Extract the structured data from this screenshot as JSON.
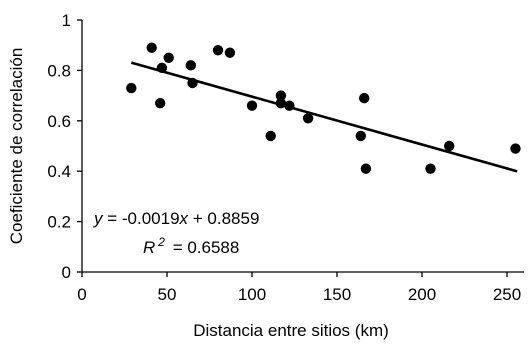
{
  "chart_data": {
    "type": "scatter",
    "title": "",
    "xlabel": "Distancia entre sitios (km)",
    "ylabel": "Coeficiente de correlación",
    "xlim": [
      0,
      260
    ],
    "ylim": [
      0,
      1
    ],
    "x_ticks": [
      "0",
      "50",
      "100",
      "150",
      "200",
      "250"
    ],
    "y_ticks": [
      "0",
      "0.2",
      "0.4",
      "0.6",
      "0.8",
      "1"
    ],
    "grid": false,
    "legend": "none",
    "colors": {
      "points": "#000000",
      "trendline": "#000000",
      "axes": "#000000"
    },
    "series": [
      {
        "points": [
          {
            "x": 29,
            "y": 0.73
          },
          {
            "x": 41,
            "y": 0.89
          },
          {
            "x": 46,
            "y": 0.67
          },
          {
            "x": 47,
            "y": 0.81
          },
          {
            "x": 51,
            "y": 0.85
          },
          {
            "x": 64,
            "y": 0.82
          },
          {
            "x": 65,
            "y": 0.75
          },
          {
            "x": 80,
            "y": 0.88
          },
          {
            "x": 87,
            "y": 0.87
          },
          {
            "x": 100,
            "y": 0.66
          },
          {
            "x": 111,
            "y": 0.54
          },
          {
            "x": 117,
            "y": 0.7
          },
          {
            "x": 117,
            "y": 0.67
          },
          {
            "x": 122,
            "y": 0.66
          },
          {
            "x": 133,
            "y": 0.61
          },
          {
            "x": 164,
            "y": 0.54
          },
          {
            "x": 166,
            "y": 0.69
          },
          {
            "x": 167,
            "y": 0.41
          },
          {
            "x": 205,
            "y": 0.41
          },
          {
            "x": 216,
            "y": 0.5
          },
          {
            "x": 255,
            "y": 0.49
          }
        ]
      }
    ],
    "trendline": {
      "slope": -0.0019,
      "intercept": 0.8859,
      "x_range": [
        29,
        256
      ]
    },
    "annotations": {
      "eq_y": "y",
      "eq_rest": " = -0.0019",
      "eq_x": "x",
      "eq_tail": " + 0.8859",
      "r2_R": "R",
      "r2_sup": "2",
      "r2_rest": " = 0.6588"
    }
  }
}
